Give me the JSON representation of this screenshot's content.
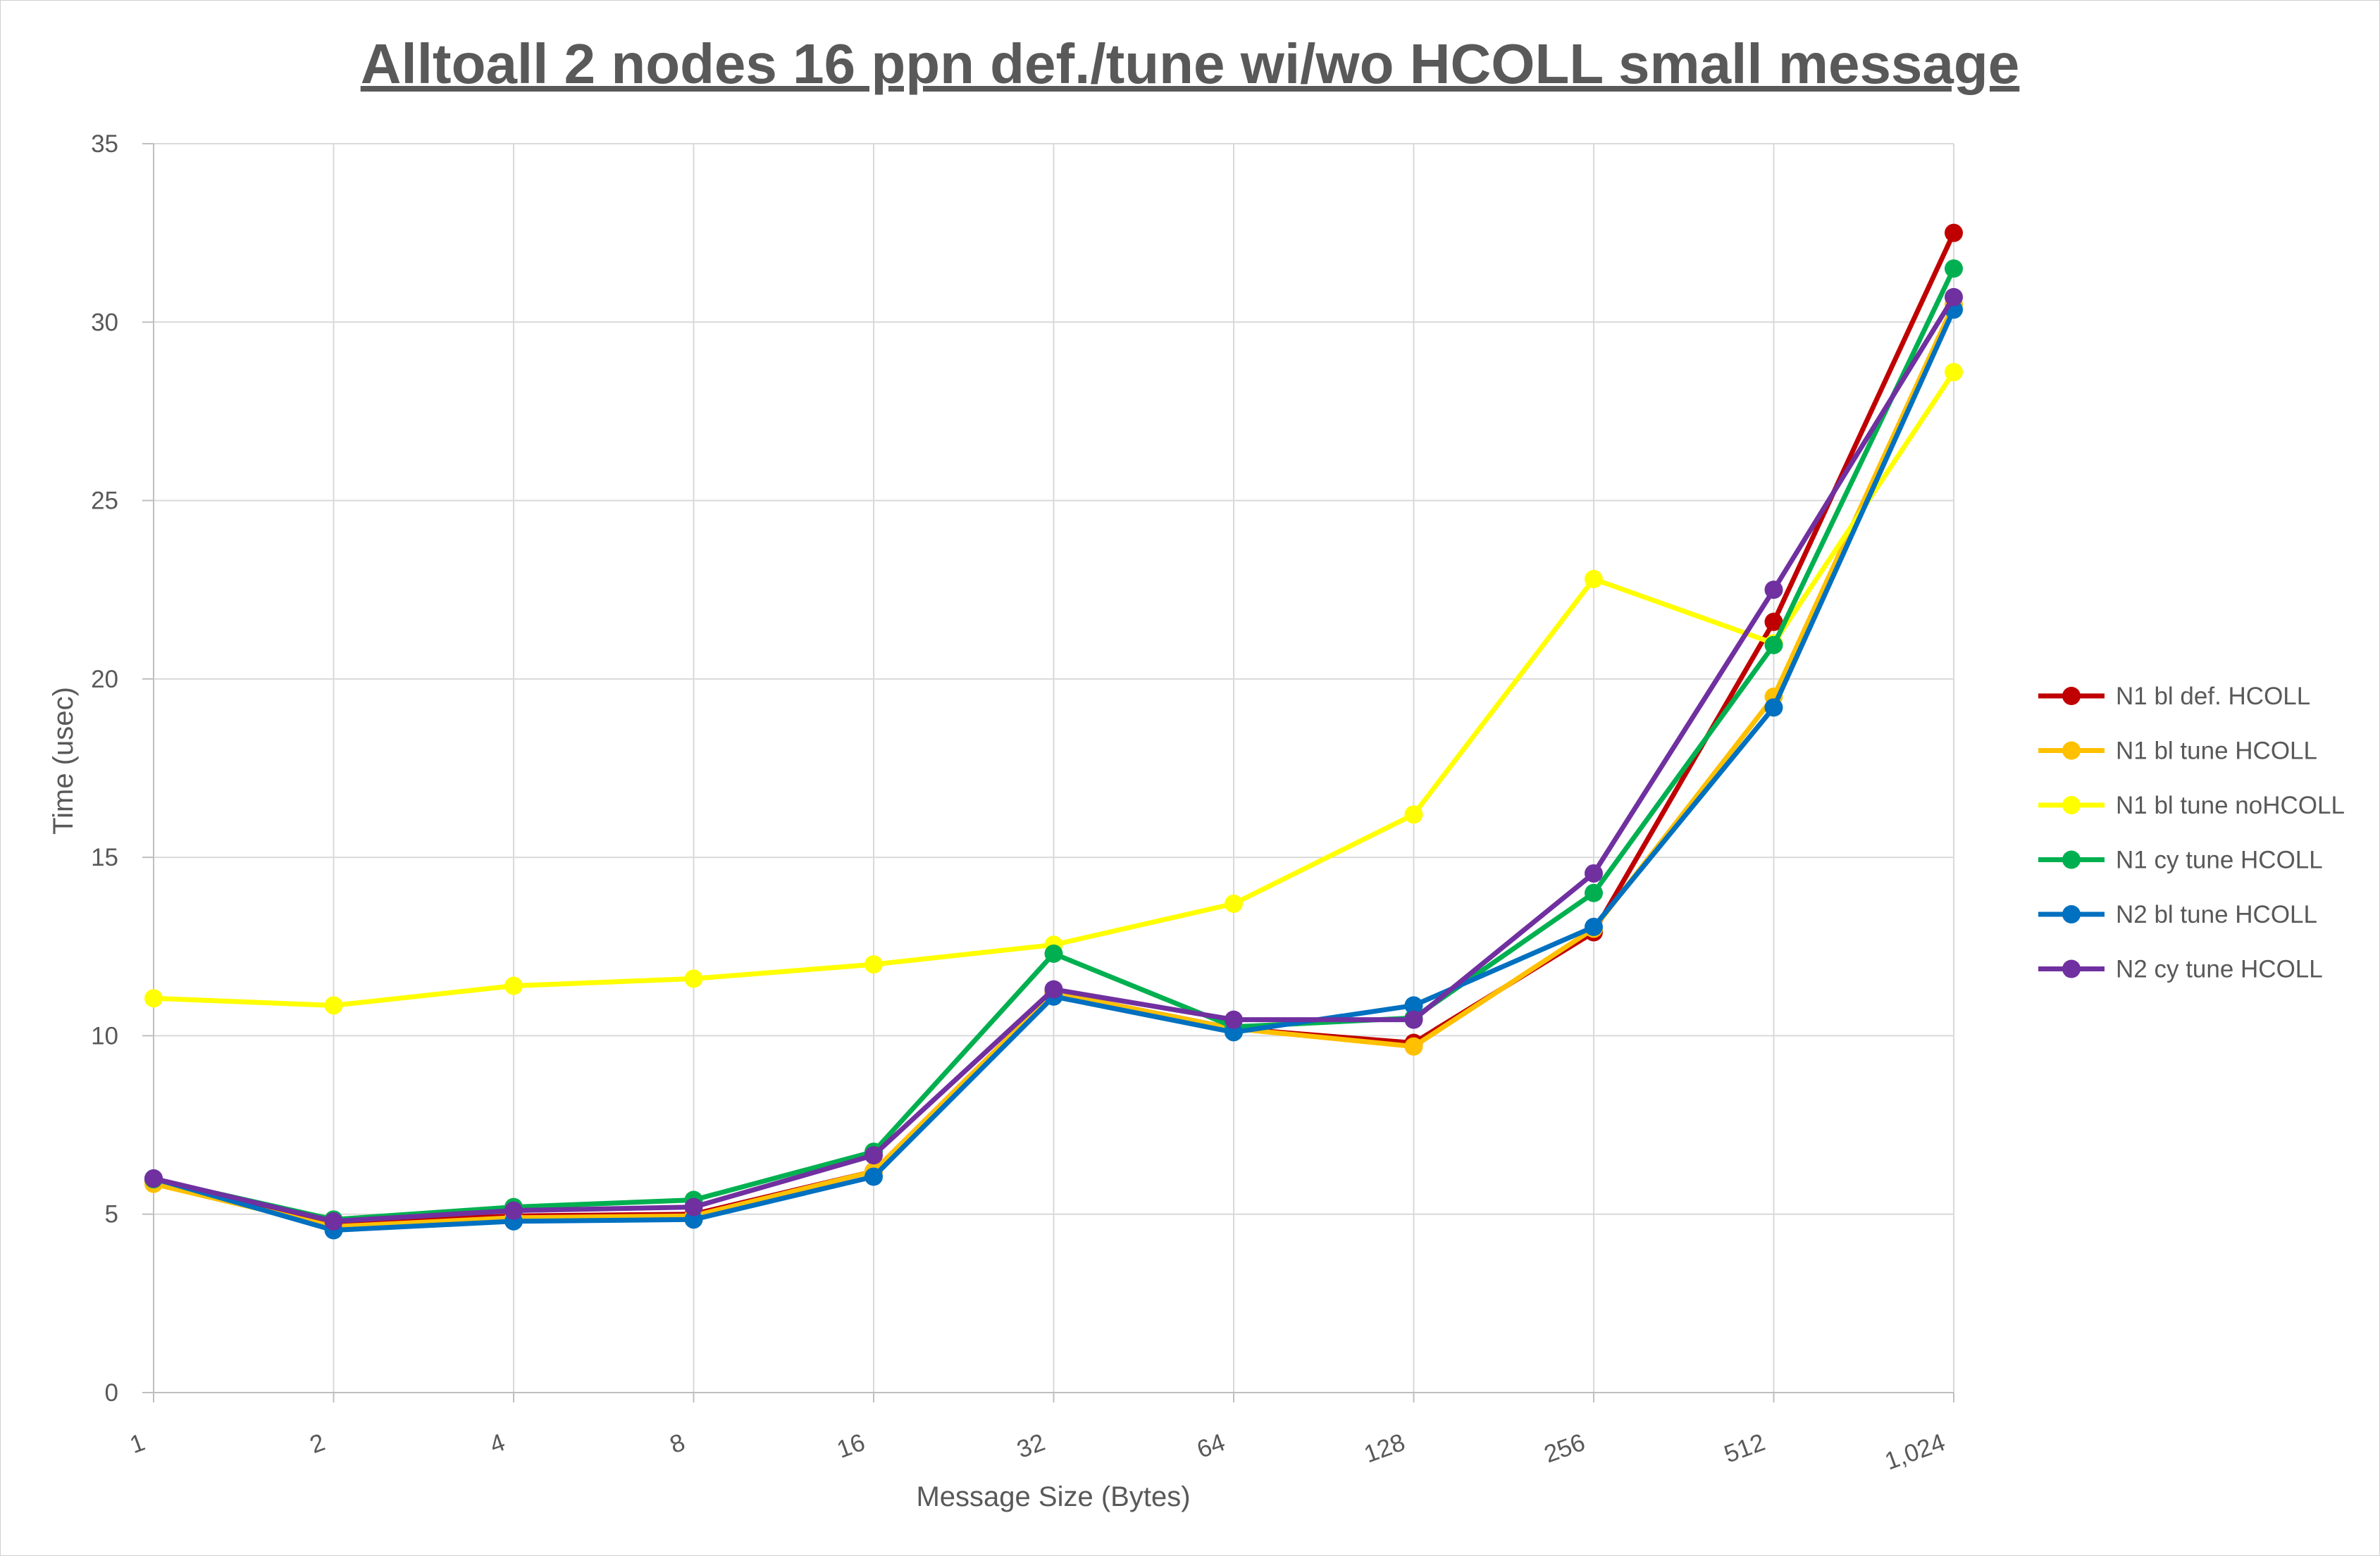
{
  "chart_data": {
    "type": "line",
    "title": "Alltoall 2 nodes 16 ppn def./tune wi/wo HCOLL small message",
    "xlabel": "Message Size (Bytes)",
    "ylabel": "Time (usec)",
    "categories": [
      "1",
      "2",
      "4",
      "8",
      "16",
      "32",
      "64",
      "128",
      "256",
      "512",
      "1,024"
    ],
    "ylim": [
      0,
      35
    ],
    "yticks": [
      0,
      5,
      10,
      15,
      20,
      25,
      30,
      35
    ],
    "grid": true,
    "legend_position": "right",
    "series": [
      {
        "name": "N1 bl def. HCOLL",
        "color": "#C00000",
        "values": [
          5.95,
          4.75,
          4.95,
          5.0,
          6.2,
          11.2,
          10.2,
          9.8,
          12.9,
          21.6,
          32.5
        ]
      },
      {
        "name": "N1 bl tune HCOLL",
        "color": "#FFC000",
        "values": [
          5.85,
          4.65,
          4.9,
          4.95,
          6.2,
          11.2,
          10.2,
          9.7,
          13.0,
          19.5,
          30.5
        ]
      },
      {
        "name": "N1 bl tune noHCOLL",
        "color": "#FFFF00",
        "values": [
          11.05,
          10.85,
          11.4,
          11.6,
          12.0,
          12.55,
          13.7,
          16.2,
          22.8,
          21.0,
          28.6
        ]
      },
      {
        "name": "N1 cy tune HCOLL",
        "color": "#00B050",
        "values": [
          5.98,
          4.85,
          5.2,
          5.4,
          6.75,
          12.3,
          10.25,
          10.5,
          14.0,
          20.95,
          31.5
        ]
      },
      {
        "name": "N2 bl tune HCOLL",
        "color": "#0070C0",
        "values": [
          6.0,
          4.55,
          4.8,
          4.85,
          6.05,
          11.1,
          10.1,
          10.85,
          13.05,
          19.2,
          30.35
        ]
      },
      {
        "name": "N2 cy tune HCOLL",
        "color": "#7030A0",
        "values": [
          6.0,
          4.8,
          5.1,
          5.2,
          6.65,
          11.3,
          10.45,
          10.45,
          14.55,
          22.5,
          30.7
        ]
      }
    ]
  }
}
